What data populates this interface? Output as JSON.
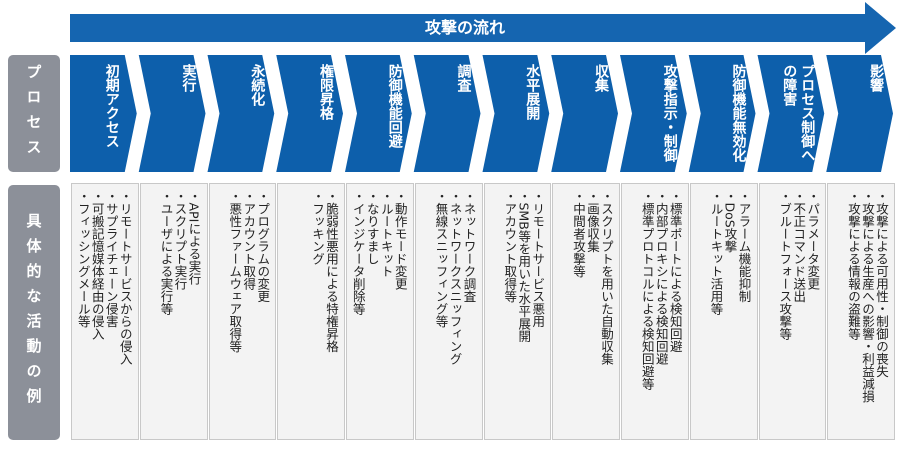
{
  "flow_label": "攻撃の流れ",
  "row_labels": {
    "process": "プロセス",
    "activities": "具体的な活動の例"
  },
  "stages": [
    {
      "label": "初期アクセス",
      "activities": [
        "リモートサービスからの侵入",
        "サプライチェーン侵害",
        "可搬記憶媒体経由の侵入",
        "フィッシングメール等"
      ]
    },
    {
      "label": "実行",
      "activities": [
        "APIによる実行",
        "スクリプト実行",
        "ユーザによる実行等"
      ]
    },
    {
      "label": "永続化",
      "activities": [
        "プログラムの変更",
        "アカウント取得",
        "悪性ファームウェア取得等"
      ]
    },
    {
      "label": "権限昇格",
      "activities": [
        "脆弱性悪用による特権昇格",
        "フッキング"
      ]
    },
    {
      "label": "防御機能回避",
      "activities": [
        "動作モード変更",
        "ルートキット",
        "なりすまし",
        "インジケータ削除等"
      ]
    },
    {
      "label": "調査",
      "activities": [
        "ネットワーク調査",
        "ネットワークスニッフィング",
        "無線スニッフィング等"
      ]
    },
    {
      "label": "水平展開",
      "activities": [
        "リモートサービス悪用",
        "SMB等を用いた水平展開",
        "アカウント取得等"
      ]
    },
    {
      "label": "収集",
      "activities": [
        "スクリプトを用いた自動収集",
        "画像収集",
        "中間者攻撃等"
      ]
    },
    {
      "label": "攻撃指示・制御",
      "activities": [
        "標準ポートによる検知回避",
        "内部プロキシによる検知回避",
        "標準プロトコルによる検知回避等"
      ]
    },
    {
      "label": "防御機能無効化",
      "activities": [
        "アラーム機能抑制",
        "DoS攻撃",
        "ルートキット活用等"
      ]
    },
    {
      "label": "プロセス制御への障害",
      "activities": [
        "パラメータ変更",
        "不正コマンド送出",
        "ブルートフォース攻撃等"
      ]
    },
    {
      "label": "影響",
      "activities": [
        "攻撃による可用性・制御の喪失",
        "攻撃による生産への影響・利益減損",
        "攻撃による情報の盗難等"
      ]
    }
  ]
}
